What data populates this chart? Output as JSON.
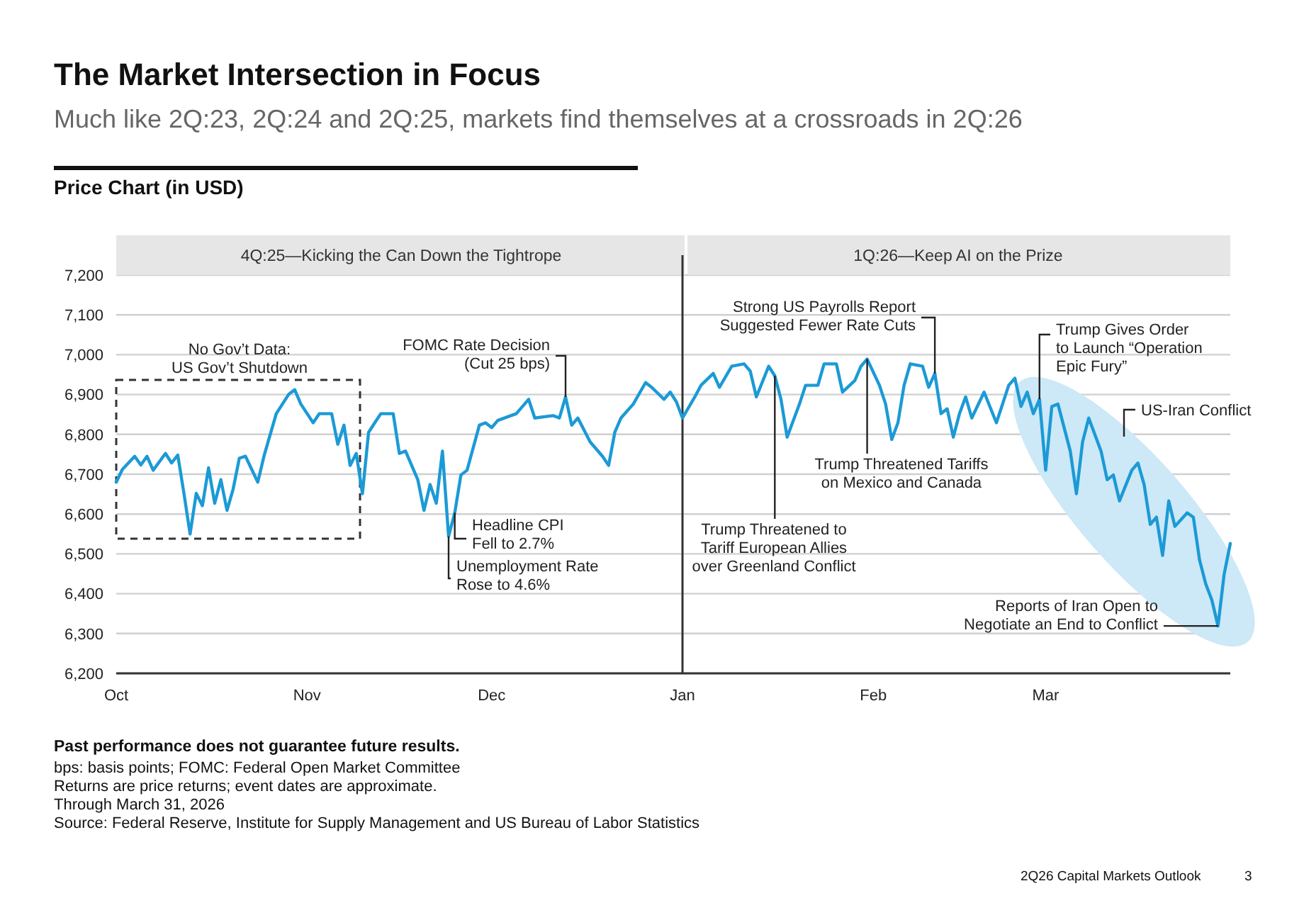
{
  "chart_data": {
    "type": "line",
    "title": "The Market Intersection in Focus",
    "subtitle": "Much like 2Q:23, 2Q:24 and 2Q:25, markets find themselves at a crossroads in 2Q:26",
    "annotations": [
      {
        "text": "FOMC Rate Decision\n(Cut 25 bps)",
        "x": "2025-12-13",
        "y": 6894
      },
      {
        "text": "Headline CPI\nFell to 2.7%",
        "x": "2025-11-25",
        "y": 6603
      },
      {
        "text": "Unemployment Rate\nRose to 4.6%",
        "x": "2025-11-24",
        "y": 6544
      },
      {
        "text": "Trump Threatened to\nTariff European Allies\nover Greenland Conflict",
        "x": "2026-01-16",
        "y": 6947
      },
      {
        "text": "Strong US Payrolls Report\nSuggested Fewer Rate Cuts",
        "x": "2026-02-11",
        "y": 6953
      },
      {
        "text": "Trump Threatened Tariffs\non Mexico and Canada",
        "x": "2026-01-31",
        "y": 6989
      },
      {
        "text": "Trump Gives Order\nto Launch “Operation\nEpic Fury”",
        "x": "2026-02-28",
        "y": 6888
      },
      {
        "text": "Reports of Iran Open to\nNegotiate an End to Conflict",
        "x": "2026-03-29",
        "y": 6319
      },
      "4Q:25—Kicking the Can Down the Tightrope",
      "1Q:26—Keep AI on the Prize",
      "No Gov’t Data:\nUS Gov’t Shutdown",
      "US-Iran Conflict",
      "Price Chart (in USD)",
      "Past performance does not guarantee future results.",
      "bps: basis points; FOMC: Federal Open Market Committee",
      "Returns are price returns; event dates are approximate.",
      "Through March 31, 2026",
      "Source: Federal Reserve, Institute for Supply Management and US Bureau of Labor Statistics",
      "2Q26 Capital Markets Outlook",
      "3"
    ],
    "x": [
      "2025-10-01",
      "2025-10-02",
      "2025-10-04",
      "2025-10-05",
      "2025-10-06",
      "2025-10-07",
      "2025-10-09",
      "2025-10-10",
      "2025-10-11",
      "2025-10-12",
      "2025-10-13",
      "2025-10-14",
      "2025-10-15",
      "2025-10-16",
      "2025-10-17",
      "2025-10-18",
      "2025-10-19",
      "2025-10-20",
      "2025-10-21",
      "2025-10-22",
      "2025-10-24",
      "2025-10-25",
      "2025-10-27",
      "2025-10-29",
      "2025-10-30",
      "2025-10-31",
      "2025-11-02",
      "2025-11-03",
      "2025-11-05",
      "2025-11-06",
      "2025-11-07",
      "2025-11-08",
      "2025-11-09",
      "2025-11-10",
      "2025-11-11",
      "2025-11-12",
      "2025-11-13",
      "2025-11-15",
      "2025-11-16",
      "2025-11-17",
      "2025-11-19",
      "2025-11-20",
      "2025-11-21",
      "2025-11-22",
      "2025-11-23",
      "2025-11-24",
      "2025-11-25",
      "2025-11-26",
      "2025-11-27",
      "2025-11-29",
      "2025-11-30",
      "2025-12-01",
      "2025-12-02",
      "2025-12-05",
      "2025-12-07",
      "2025-12-08",
      "2025-12-11",
      "2025-12-12",
      "2025-12-13",
      "2025-12-14",
      "2025-12-15",
      "2025-12-17",
      "2025-12-19",
      "2025-12-20",
      "2025-12-21",
      "2025-12-22",
      "2025-12-24",
      "2025-12-26",
      "2025-12-27",
      "2025-12-29",
      "2025-12-30",
      "2025-12-31",
      "2026-01-01",
      "2026-01-03",
      "2026-01-04",
      "2026-01-06",
      "2026-01-07",
      "2026-01-09",
      "2026-01-11",
      "2026-01-12",
      "2026-01-13",
      "2026-01-15",
      "2026-01-16",
      "2026-01-17",
      "2026-01-18",
      "2026-01-20",
      "2026-01-21",
      "2026-01-23",
      "2026-01-24",
      "2026-01-26",
      "2026-01-27",
      "2026-01-29",
      "2026-01-30",
      "2026-01-31",
      "2026-02-02",
      "2026-02-03",
      "2026-02-04",
      "2026-02-05",
      "2026-02-06",
      "2026-02-07",
      "2026-02-09",
      "2026-02-10",
      "2026-02-11",
      "2026-02-12",
      "2026-02-13",
      "2026-02-14",
      "2026-02-15",
      "2026-02-16",
      "2026-02-17",
      "2026-02-19",
      "2026-02-21",
      "2026-02-23",
      "2026-02-24",
      "2026-02-25",
      "2026-02-26",
      "2026-02-27",
      "2026-02-28",
      "2026-03-01",
      "2026-03-02",
      "2026-03-03",
      "2026-03-05",
      "2026-03-06",
      "2026-03-07",
      "2026-03-08",
      "2026-03-10",
      "2026-03-11",
      "2026-03-12",
      "2026-03-13",
      "2026-03-15",
      "2026-03-16",
      "2026-03-17",
      "2026-03-18",
      "2026-03-19",
      "2026-03-20",
      "2026-03-21",
      "2026-03-22",
      "2026-03-24",
      "2026-03-25",
      "2026-03-26",
      "2026-03-27",
      "2026-03-28",
      "2026-03-29",
      "2026-03-30",
      "2026-03-31"
    ],
    "series": [
      {
        "color": "#1b9ad6",
        "values": [
          6680,
          6712,
          6745,
          6723,
          6745,
          6710,
          6752,
          6728,
          6748,
          6652,
          6550,
          6652,
          6621,
          6716,
          6627,
          6686,
          6609,
          6663,
          6740,
          6745,
          6680,
          6745,
          6852,
          6900,
          6912,
          6876,
          6829,
          6852,
          6852,
          6775,
          6823,
          6722,
          6752,
          6651,
          6805,
          6829,
          6852,
          6852,
          6752,
          6758,
          6686,
          6609,
          6674,
          6627,
          6758,
          6544,
          6603,
          6698,
          6710,
          6823,
          6829,
          6817,
          6835,
          6852,
          6888,
          6841,
          6847,
          6841,
          6894,
          6823,
          6841,
          6781,
          6745,
          6722,
          6805,
          6841,
          6876,
          6930,
          6918,
          6888,
          6906,
          6882,
          6841,
          6894,
          6923,
          6953,
          6918,
          6971,
          6977,
          6959,
          6894,
          6971,
          6947,
          6888,
          6793,
          6876,
          6923,
          6923,
          6977,
          6977,
          6906,
          6935,
          6971,
          6989,
          6923,
          6876,
          6787,
          6829,
          6923,
          6977,
          6971,
          6918,
          6953,
          6852,
          6864,
          6793,
          6852,
          6894,
          6841,
          6906,
          6829,
          6923,
          6941,
          6870,
          6906,
          6852,
          6888,
          6710,
          6870,
          6876,
          6758,
          6651,
          6781,
          6841,
          6758,
          6686,
          6698,
          6633,
          6710,
          6728,
          6674,
          6574,
          6592,
          6496,
          6633,
          6569,
          6603,
          6592,
          6485,
          6425,
          6384,
          6319,
          6449,
          6526
        ]
      }
    ],
    "xlim": [
      "2025-10-01",
      "2026-03-31"
    ],
    "xticks": [
      {
        "value": "2025-10-01",
        "label": "Oct"
      },
      {
        "value": "2025-11-01",
        "label": "Nov"
      },
      {
        "value": "2025-12-01",
        "label": "Dec"
      },
      {
        "value": "2026-01-01",
        "label": "Jan"
      },
      {
        "value": "2026-02-01",
        "label": "Feb"
      },
      {
        "value": "2026-03-01",
        "label": "Mar"
      }
    ],
    "ylim": [
      6200,
      7200
    ],
    "yticks": [
      {
        "value": 6200,
        "label": "6,200"
      },
      {
        "value": 6300,
        "label": "6,300"
      },
      {
        "value": 6400,
        "label": "6,400"
      },
      {
        "value": 6500,
        "label": "6,500"
      },
      {
        "value": 6600,
        "label": "6,600"
      },
      {
        "value": 6700,
        "label": "6,700"
      },
      {
        "value": 6800,
        "label": "6,800"
      },
      {
        "value": 6900,
        "label": "6,900"
      },
      {
        "value": 7000,
        "label": "7,000"
      },
      {
        "value": 7100,
        "label": "7,100"
      },
      {
        "value": 7200,
        "label": "7,200"
      }
    ],
    "grid": "y",
    "ref_lines": [
      {
        "axis": "x",
        "value": "2026-01-01",
        "color": "#333333"
      }
    ]
  }
}
